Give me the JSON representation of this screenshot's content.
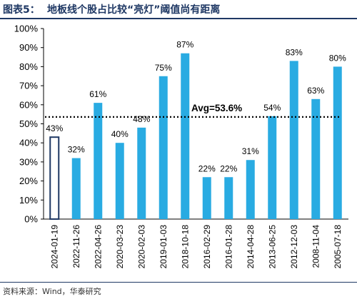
{
  "header": {
    "label": "图表5：",
    "title": "地板线个股占比较“亮灯”阈值尚有距离"
  },
  "source": "资料来源：Wind，华泰研究",
  "colors": {
    "bar": "#29abe2",
    "highlight_outline": "#1f3864",
    "text": "#000000",
    "avg_line": "#000000",
    "title": "#1f3864"
  },
  "chart_data": {
    "type": "bar",
    "categories": [
      "2024-01-19",
      "2022-11-26",
      "2022-04-26",
      "2020-03-23",
      "2020-02-03",
      "2019-01-03",
      "2018-10-18",
      "2016-02-29",
      "2016-01-28",
      "2014-04-28",
      "2013-06-25",
      "2012-12-03",
      "2008-11-04",
      "2005-07-18"
    ],
    "values": [
      43,
      32,
      61,
      40,
      48,
      75,
      87,
      22,
      22,
      31,
      54,
      83,
      63,
      80
    ],
    "data_labels": [
      "43%",
      "32%",
      "61%",
      "40%",
      "48%",
      "75%",
      "87%",
      "22%",
      "22%",
      "31%",
      "54%",
      "83%",
      "63%",
      "80%"
    ],
    "highlight_index": 0,
    "average": 53.6,
    "average_label": "Avg=53.6%",
    "ylim": [
      0,
      100
    ],
    "yticks": [
      0,
      10,
      20,
      30,
      40,
      50,
      60,
      70,
      80,
      90,
      100
    ],
    "ytick_labels": [
      "0%",
      "10%",
      "20%",
      "30%",
      "40%",
      "50%",
      "60%",
      "70%",
      "80%",
      "90%",
      "100%"
    ],
    "grid": false,
    "legend": "none"
  }
}
